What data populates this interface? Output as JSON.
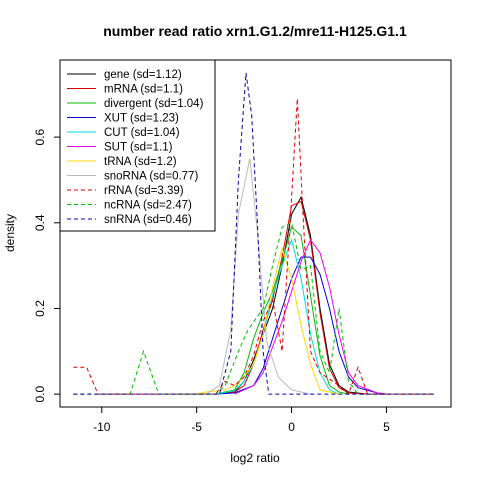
{
  "chart_data": {
    "type": "line",
    "title": "number read ratio xrn1.G1.2/mre11-H125.G1.1",
    "xlabel": "log2 ratio",
    "ylabel": "density",
    "xlim": [
      -12.2,
      8.4
    ],
    "ylim": [
      -0.03,
      0.78
    ],
    "x_ticks": [
      {
        "value": -10,
        "label": "-10"
      },
      {
        "value": -5,
        "label": "-5"
      },
      {
        "value": 0,
        "label": "0"
      },
      {
        "value": 5,
        "label": "5"
      }
    ],
    "y_ticks": [
      {
        "value": 0.0,
        "label": "0.0"
      },
      {
        "value": 0.2,
        "label": "0.2"
      },
      {
        "value": 0.4,
        "label": "0.4"
      },
      {
        "value": 0.6,
        "label": "0.6"
      }
    ],
    "grid": false,
    "legend_position": "top-left",
    "series": [
      {
        "name": "gene (sd=1.12)",
        "color": "#000000",
        "dash": "solid",
        "points": [
          [
            -4,
            0
          ],
          [
            -3,
            0.005
          ],
          [
            -2.5,
            0.03
          ],
          [
            -2,
            0.08
          ],
          [
            -1.5,
            0.14
          ],
          [
            -1,
            0.2
          ],
          [
            -0.5,
            0.3
          ],
          [
            0,
            0.42
          ],
          [
            0.5,
            0.46
          ],
          [
            1,
            0.37
          ],
          [
            1.5,
            0.2
          ],
          [
            2,
            0.07
          ],
          [
            2.5,
            0.02
          ],
          [
            3,
            0.005
          ],
          [
            4,
            0
          ]
        ]
      },
      {
        "name": "mRNA (sd=1.1)",
        "color": "#dd0000",
        "dash": "solid",
        "points": [
          [
            -4,
            0
          ],
          [
            -3,
            0.005
          ],
          [
            -2.5,
            0.02
          ],
          [
            -2,
            0.07
          ],
          [
            -1.5,
            0.15
          ],
          [
            -1,
            0.22
          ],
          [
            -0.5,
            0.32
          ],
          [
            0,
            0.44
          ],
          [
            0.5,
            0.45
          ],
          [
            1,
            0.36
          ],
          [
            1.5,
            0.19
          ],
          [
            2,
            0.06
          ],
          [
            2.5,
            0.015
          ],
          [
            3,
            0.003
          ],
          [
            4,
            0
          ]
        ]
      },
      {
        "name": "divergent (sd=1.04)",
        "color": "#00bb00",
        "dash": "solid",
        "points": [
          [
            -4,
            0
          ],
          [
            -3,
            0.01
          ],
          [
            -2.5,
            0.05
          ],
          [
            -2,
            0.13
          ],
          [
            -1.5,
            0.19
          ],
          [
            -1,
            0.24
          ],
          [
            -0.5,
            0.31
          ],
          [
            0,
            0.39
          ],
          [
            0.5,
            0.37
          ],
          [
            1,
            0.23
          ],
          [
            1.5,
            0.09
          ],
          [
            2,
            0.02
          ],
          [
            2.5,
            0.005
          ],
          [
            3,
            0
          ]
        ]
      },
      {
        "name": "XUT (sd=1.23)",
        "color": "#0000cc",
        "dash": "solid",
        "points": [
          [
            -4,
            0
          ],
          [
            -3,
            0.003
          ],
          [
            -2,
            0.02
          ],
          [
            -1.5,
            0.06
          ],
          [
            -1,
            0.13
          ],
          [
            -0.5,
            0.2
          ],
          [
            0,
            0.27
          ],
          [
            0.5,
            0.32
          ],
          [
            1,
            0.32
          ],
          [
            1.5,
            0.28
          ],
          [
            2,
            0.2
          ],
          [
            2.5,
            0.1
          ],
          [
            3,
            0.04
          ],
          [
            3.5,
            0.015
          ],
          [
            4.5,
            0.003
          ],
          [
            5,
            0
          ]
        ]
      },
      {
        "name": "CUT (sd=1.04)",
        "color": "#00dddd",
        "dash": "solid",
        "points": [
          [
            -4,
            0
          ],
          [
            -3,
            0.008
          ],
          [
            -2.5,
            0.03
          ],
          [
            -2,
            0.07
          ],
          [
            -1.5,
            0.14
          ],
          [
            -1,
            0.23
          ],
          [
            -0.5,
            0.3
          ],
          [
            0,
            0.36
          ],
          [
            0.5,
            0.27
          ],
          [
            1,
            0.14
          ],
          [
            1.5,
            0.05
          ],
          [
            2,
            0.01
          ],
          [
            2.5,
            0
          ]
        ]
      },
      {
        "name": "SUT (sd=1.1)",
        "color": "#ee00ee",
        "dash": "solid",
        "points": [
          [
            -3,
            0
          ],
          [
            -2,
            0.02
          ],
          [
            -1.5,
            0.05
          ],
          [
            -1,
            0.11
          ],
          [
            -0.5,
            0.17
          ],
          [
            0,
            0.24
          ],
          [
            0.5,
            0.31
          ],
          [
            1,
            0.36
          ],
          [
            1.5,
            0.33
          ],
          [
            2,
            0.25
          ],
          [
            2.5,
            0.14
          ],
          [
            3,
            0.05
          ],
          [
            3.5,
            0.02
          ],
          [
            4.5,
            0.003
          ],
          [
            5,
            0
          ]
        ]
      },
      {
        "name": "tRNA (sd=1.2)",
        "color": "#ffd700",
        "dash": "solid",
        "points": [
          [
            -6,
            0
          ],
          [
            -5,
            0
          ],
          [
            -4.5,
            0.005
          ],
          [
            -3.5,
            0.01
          ],
          [
            -3,
            0.02
          ],
          [
            -2.5,
            0.04
          ],
          [
            -2,
            0.07
          ],
          [
            -1.5,
            0.14
          ],
          [
            -1,
            0.25
          ],
          [
            -0.5,
            0.34
          ],
          [
            0,
            0.27
          ],
          [
            0.5,
            0.16
          ],
          [
            1,
            0.07
          ],
          [
            1.5,
            0.01
          ],
          [
            2.5,
            0
          ]
        ]
      },
      {
        "name": "snoRNA (sd=0.77)",
        "color": "#bbbbbb",
        "dash": "solid",
        "points": [
          [
            -4.5,
            0
          ],
          [
            -3.8,
            0.02
          ],
          [
            -3.2,
            0.15
          ],
          [
            -2.8,
            0.42
          ],
          [
            -2.2,
            0.55
          ],
          [
            -1.8,
            0.38
          ],
          [
            -1.3,
            0.12
          ],
          [
            -0.7,
            0.04
          ],
          [
            0,
            0.01
          ],
          [
            1,
            0
          ]
        ]
      },
      {
        "name": "rRNA (sd=3.39)",
        "color": "#dd0000",
        "dash": "dashed",
        "points": [
          [
            -11.5,
            0.063
          ],
          [
            -10.8,
            0.063
          ],
          [
            -10.2,
            0
          ],
          [
            -4,
            0
          ],
          [
            -3.5,
            0.03
          ],
          [
            -3,
            0.02
          ],
          [
            -2.5,
            0.04
          ],
          [
            -2,
            0.09
          ],
          [
            -1.5,
            0.17
          ],
          [
            -1,
            0.22
          ],
          [
            -0.5,
            0.1
          ],
          [
            0,
            0.46
          ],
          [
            0.3,
            0.69
          ],
          [
            0.6,
            0.42
          ],
          [
            1,
            0.1
          ],
          [
            1.5,
            0.05
          ],
          [
            2.5,
            0.02
          ],
          [
            3,
            0
          ],
          [
            3.5,
            0.063
          ],
          [
            4,
            0
          ],
          [
            7.5,
            0
          ]
        ]
      },
      {
        "name": "ncRNA (sd=2.47)",
        "color": "#00bb00",
        "dash": "dashed",
        "points": [
          [
            -11.5,
            0
          ],
          [
            -8.5,
            0
          ],
          [
            -7.8,
            0.1
          ],
          [
            -7,
            0
          ],
          [
            -4,
            0
          ],
          [
            -3.5,
            0.02
          ],
          [
            -2.8,
            0.1
          ],
          [
            -2.3,
            0.15
          ],
          [
            -1.5,
            0.2
          ],
          [
            -1,
            0.3
          ],
          [
            -0.5,
            0.39
          ],
          [
            0,
            0.4
          ],
          [
            0.5,
            0.29
          ],
          [
            1,
            0.3
          ],
          [
            1.5,
            0.1
          ],
          [
            2,
            0.05
          ],
          [
            2.5,
            0.2
          ],
          [
            3,
            0.03
          ],
          [
            3.5,
            0
          ],
          [
            7.5,
            0
          ]
        ]
      },
      {
        "name": "snRNA (sd=0.46)",
        "color": "#0000aa",
        "dash": "dashed",
        "points": [
          [
            -11.5,
            0
          ],
          [
            -3.8,
            0
          ],
          [
            -3.2,
            0.1
          ],
          [
            -2.8,
            0.5
          ],
          [
            -2.4,
            0.75
          ],
          [
            -2.1,
            0.65
          ],
          [
            -1.8,
            0.4
          ],
          [
            -1.5,
            0.1
          ],
          [
            -1.2,
            0
          ],
          [
            7.5,
            0
          ]
        ]
      }
    ]
  }
}
